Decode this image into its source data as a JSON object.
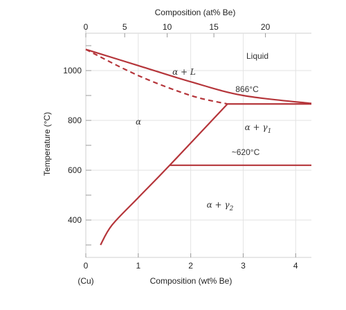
{
  "diagram": {
    "top_axis": {
      "title": "Composition (at% Be)",
      "ticks": [
        {
          "label": "0",
          "at_pct": 0
        },
        {
          "label": "5",
          "at_pct": 5
        },
        {
          "label": "10",
          "at_pct": 10
        },
        {
          "label": "15",
          "at_pct": 15
        },
        {
          "label": "20",
          "at_pct": 20
        }
      ]
    },
    "bottom_axis": {
      "title": "Composition (wt% Be)",
      "ticks": [
        "0",
        "1",
        "2",
        "3",
        "4"
      ],
      "endpoint_label": "(Cu)",
      "range": [
        0,
        4.3
      ]
    },
    "left_axis": {
      "title": "Temperature (°C)",
      "ticks": [
        "400",
        "600",
        "800",
        "1000"
      ],
      "range": [
        250,
        1150
      ]
    },
    "regions": {
      "liquid": "Liquid",
      "alpha_plus_liquid": "α + L",
      "alpha": "α",
      "alpha_plus_gamma1": "α + γ",
      "gamma1_subscript": "1",
      "alpha_plus_gamma2": "α + γ",
      "gamma2_subscript": "2"
    },
    "temperature_labels": {
      "eutectic": "866°C",
      "eutectoid": "~620°C"
    },
    "curves": {
      "color": "#b5353a",
      "liquidus": [
        [
          0,
          1085
        ],
        [
          1,
          1020
        ],
        [
          2,
          955
        ],
        [
          3,
          900
        ],
        [
          4.3,
          868
        ]
      ],
      "solidus": [
        [
          0,
          1085
        ],
        [
          1,
          980
        ],
        [
          2,
          900
        ],
        [
          2.7,
          866
        ]
      ],
      "solvus": [
        [
          0.28,
          300
        ],
        [
          0.5,
          380
        ],
        [
          1,
          490
        ],
        [
          1.6,
          620
        ],
        [
          2.7,
          866
        ]
      ],
      "eutectic_line": {
        "from": 2.7,
        "to": 4.3,
        "temp": 866
      },
      "eutectoid_line": {
        "from": 1.6,
        "to": 4.3,
        "temp": 620
      }
    }
  }
}
